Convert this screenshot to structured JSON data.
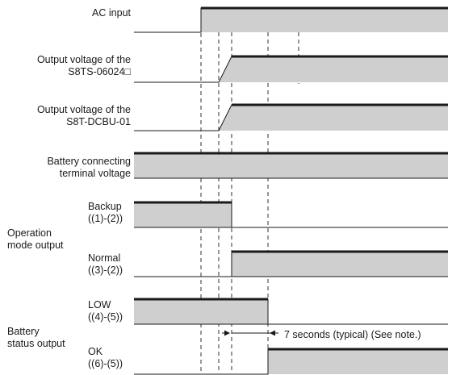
{
  "signals": [
    {
      "id": "ac",
      "label_lines": [
        "AC input"
      ]
    },
    {
      "id": "s8ts",
      "label_lines": [
        "Output voltage of the",
        "S8TS-06024□"
      ]
    },
    {
      "id": "dcbu",
      "label_lines": [
        "Output voltage of the",
        "S8T-DCBU-01"
      ]
    },
    {
      "id": "batt",
      "label_lines": [
        "Battery connecting",
        "terminal voltage"
      ]
    },
    {
      "id": "backup",
      "label_lines": [
        "Backup",
        "((1)-(2))"
      ]
    },
    {
      "id": "normal",
      "label_lines": [
        "Normal",
        "((3)-(2))"
      ]
    },
    {
      "id": "low",
      "label_lines": [
        "LOW",
        "((4)-(5))"
      ]
    },
    {
      "id": "ok",
      "label_lines": [
        "OK",
        "((6)-(5))"
      ]
    }
  ],
  "groups": {
    "operation_mode": [
      "Operation",
      "mode output"
    ],
    "battery_status": [
      "Battery",
      "status output"
    ]
  },
  "annotation": "7 seconds (typical) (See note.)",
  "colors": {
    "fill": "#cfcfcf",
    "line": "#1a1a1a"
  }
}
